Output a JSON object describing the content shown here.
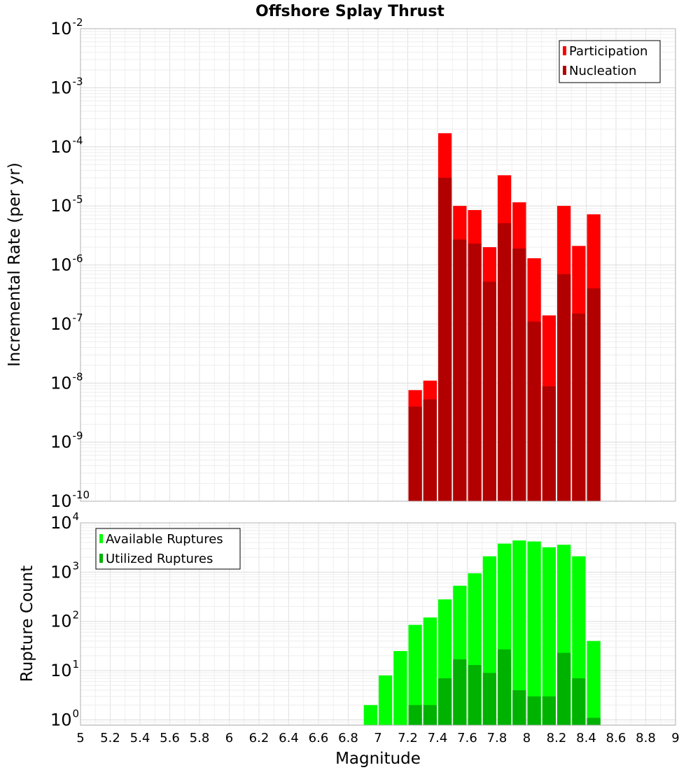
{
  "title": "Offshore Splay Thrust",
  "xlabel": "Magnitude",
  "colors": {
    "participation": "#ff0000",
    "nucleation": "#b20000",
    "available": "#00ff00",
    "utilized": "#00b200"
  },
  "chart_data": [
    {
      "type": "bar",
      "panel": "top",
      "ylabel": "Incremental Rate (per yr)",
      "yscale": "log",
      "ylim": [
        1e-10,
        0.01
      ],
      "xlim": [
        5,
        9
      ],
      "grid": true,
      "legend_position": "top-right",
      "x_ticks": [
        "5",
        "5.2",
        "5.4",
        "5.6",
        "5.8",
        "6",
        "6.2",
        "6.4",
        "6.6",
        "6.8",
        "7",
        "7.2",
        "7.4",
        "7.6",
        "7.8",
        "8",
        "8.2",
        "8.4",
        "8.6",
        "8.8",
        "9"
      ],
      "x": [
        7.25,
        7.35,
        7.45,
        7.55,
        7.65,
        7.75,
        7.85,
        7.95,
        8.05,
        8.15,
        8.25,
        8.35,
        8.45
      ],
      "series": [
        {
          "name": "Participation",
          "color_key": "participation",
          "values": [
            7.6e-09,
            1.1e-08,
            0.00017,
            1e-05,
            8.5e-06,
            2e-06,
            3.3e-05,
            1.15e-05,
            1.3e-06,
            1.4e-07,
            1e-05,
            2.1e-06,
            7.2e-06
          ]
        },
        {
          "name": "Nucleation",
          "color_key": "nucleation",
          "values": [
            4e-09,
            5.3e-09,
            3e-05,
            2.7e-06,
            2.3e-06,
            5.2e-07,
            5.1e-06,
            1.9e-06,
            1.1e-07,
            8.8e-09,
            7e-07,
            1.5e-07,
            4e-07
          ]
        }
      ]
    },
    {
      "type": "bar",
      "panel": "bottom",
      "ylabel": "Rupture Count",
      "yscale": "log",
      "ylim": [
        0.78,
        10000
      ],
      "xlim": [
        5,
        9
      ],
      "grid": true,
      "legend_position": "top-left",
      "x": [
        6.95,
        7.05,
        7.15,
        7.25,
        7.35,
        7.45,
        7.55,
        7.65,
        7.75,
        7.85,
        7.95,
        8.05,
        8.15,
        8.25,
        8.35,
        8.45
      ],
      "series": [
        {
          "name": "Available Ruptures",
          "color_key": "available",
          "values": [
            2,
            8,
            25,
            85,
            120,
            280,
            530,
            950,
            2100,
            3800,
            4400,
            4200,
            3200,
            3600,
            2100,
            40
          ]
        },
        {
          "name": "Utilized Ruptures",
          "color_key": "utilized",
          "values": [
            0,
            0,
            0,
            2,
            2,
            7,
            17,
            13,
            9,
            27,
            4,
            3,
            3,
            23,
            7,
            1.1
          ]
        }
      ]
    }
  ]
}
